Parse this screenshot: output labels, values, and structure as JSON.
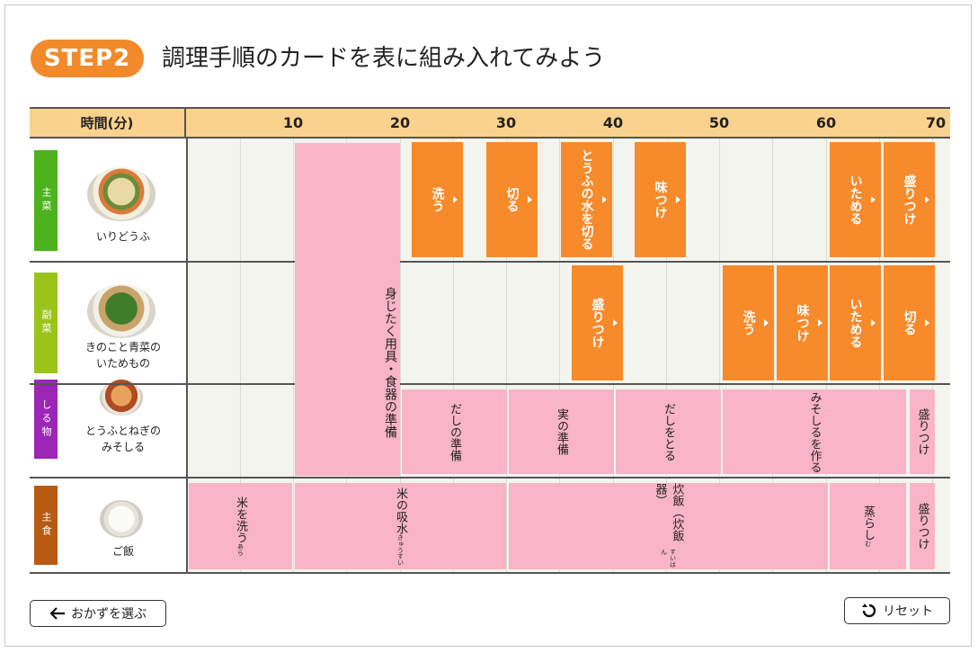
{
  "header": {
    "step_label": "STEP2",
    "title": "調理手順のカードを表に組み入れてみよう"
  },
  "table": {
    "time_label": "時間(分)",
    "ticks": [
      "10",
      "20",
      "30",
      "40",
      "50",
      "60",
      "70"
    ],
    "rows": [
      {
        "tag": "主菜",
        "tag_color": "#4cb31e",
        "dish": "いりどうふ"
      },
      {
        "tag": "副菜",
        "tag_color": "#9bc41b",
        "dish_line1": "きのこと青菜の",
        "dish_line2": "いためもの"
      },
      {
        "tag": "しる物",
        "tag_color": "#9b26b6",
        "dish_line1": "とうふとねぎの",
        "dish_line2": "みそしる"
      },
      {
        "tag": "主食",
        "tag_color": "#b85a12",
        "dish": "ご飯"
      }
    ]
  },
  "cards": {
    "prep": "身じたく用具・食器の準備",
    "main": [
      "洗う",
      "切る",
      "とうふの水を切る",
      "味つけ",
      "いためる",
      "盛りつけ"
    ],
    "side": [
      "盛りつけ",
      "洗う",
      "味つけ",
      "いためる",
      "切る"
    ],
    "soup": [
      "だしの準備",
      "実の準備",
      "だしをとる",
      "みそしるを作る",
      "盛りつけ"
    ],
    "rice": {
      "wash": "米を洗う",
      "wash_ruby": "あら",
      "soak": "米の吸水",
      "soak_ruby": "きゅうすい",
      "cook": "炊飯（炊飯器）",
      "cook_ruby": "すいはん",
      "steam": "蒸らし",
      "steam_ruby": "む",
      "serve": "盛りつけ"
    }
  },
  "footer": {
    "back_label": "おかずを選ぶ",
    "reset_label": "リセット"
  },
  "colors": {
    "accent": "#f28a2b",
    "orange_card": "#f78a2a",
    "pink_card": "#f9b4c8",
    "header_bg": "#fbd28d"
  }
}
